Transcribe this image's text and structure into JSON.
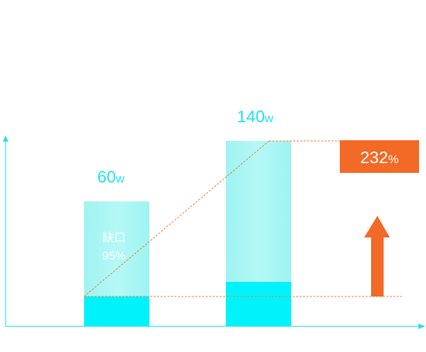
{
  "bars": [
    {
      "value": 60,
      "unit": "w"
    },
    {
      "value": 140,
      "unit": "w"
    }
  ],
  "gap": {
    "label": "缺口",
    "value": "95%"
  },
  "growth": {
    "value": 232,
    "unit": "%"
  }
}
